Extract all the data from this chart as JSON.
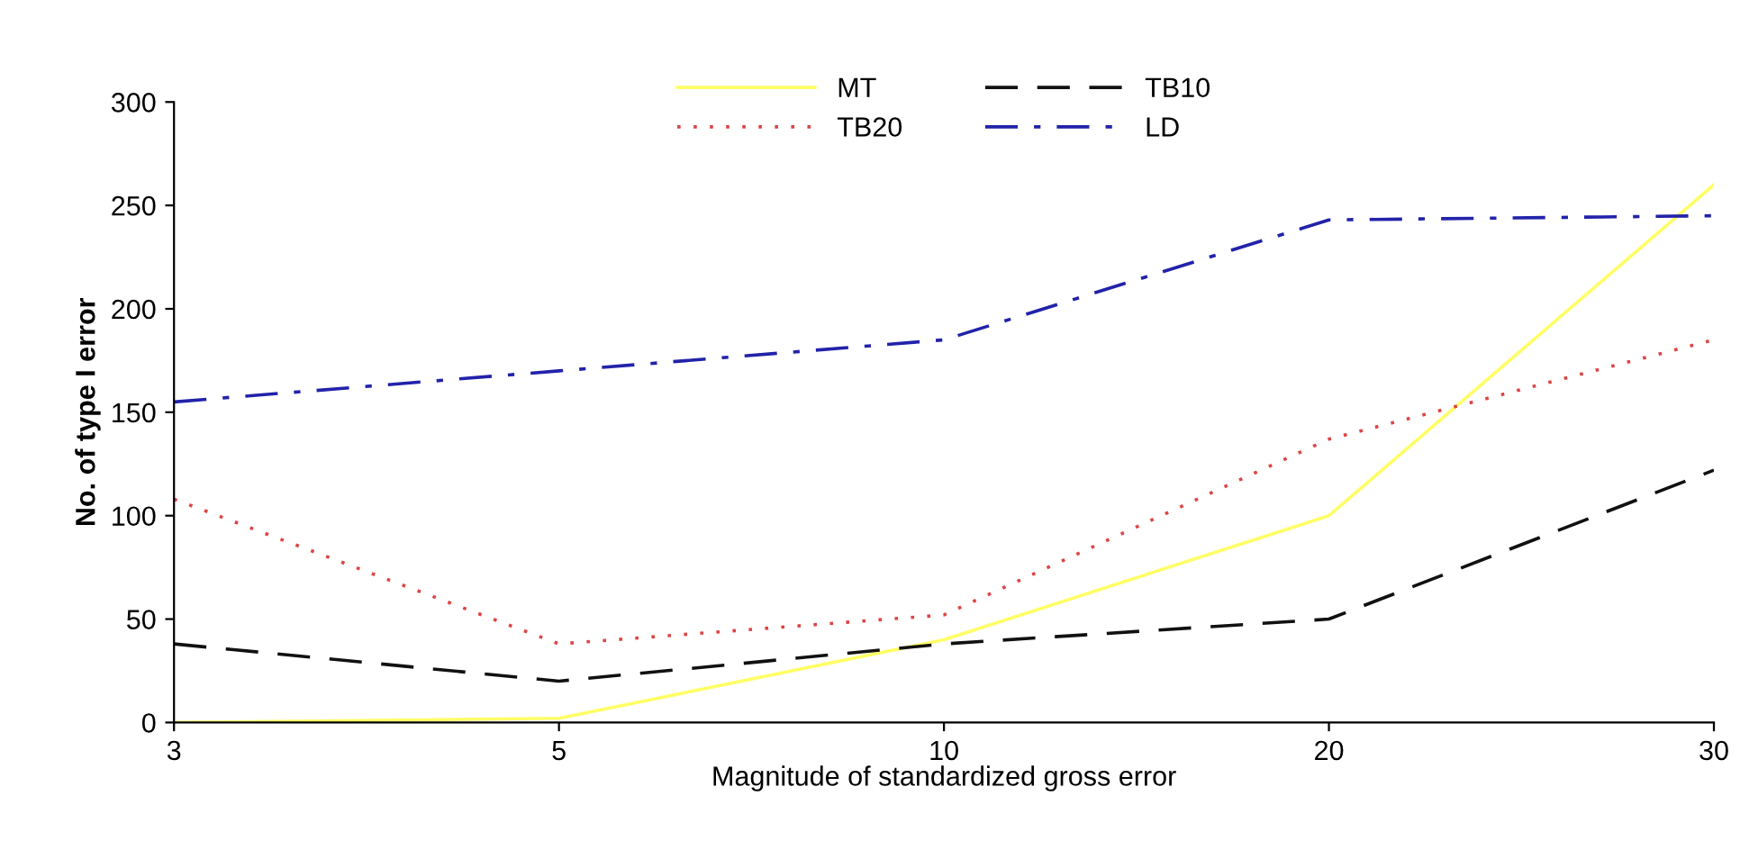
{
  "chart_data": {
    "type": "line",
    "xlabel": "Magnitude of standardized gross error",
    "ylabel": "No. of type I error",
    "categories": [
      "3",
      "5",
      "10",
      "20",
      "30"
    ],
    "series": [
      {
        "name": "MT",
        "color": "#ffff66",
        "line_style": "solid",
        "values": [
          0,
          2,
          40,
          100,
          260
        ]
      },
      {
        "name": "TB20",
        "color": "#dd4444",
        "line_style": "dotted",
        "values": [
          108,
          38,
          52,
          137,
          185
        ]
      },
      {
        "name": "TB10",
        "color": "#111111",
        "line_style": "dashed",
        "values": [
          38,
          20,
          38,
          50,
          122
        ]
      },
      {
        "name": "LD",
        "color": "#2222aa",
        "line_style": "dashdot",
        "values": [
          155,
          170,
          185,
          243,
          245
        ]
      }
    ],
    "ylim": [
      0,
      300
    ],
    "yticks": [
      0,
      50,
      100,
      150,
      200,
      250,
      300
    ],
    "grid": false,
    "legend": "top",
    "marker": "none"
  }
}
